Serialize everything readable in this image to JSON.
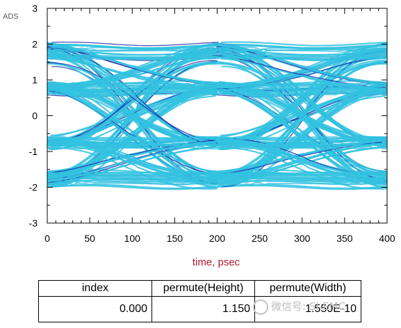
{
  "app_label": "ADS",
  "chart_data": {
    "type": "line",
    "title": "",
    "xlabel": "time, psec",
    "ylabel": "",
    "xlim": [
      0,
      400
    ],
    "ylim": [
      -3,
      3
    ],
    "x_ticks": [
      0,
      50,
      100,
      150,
      200,
      250,
      300,
      350,
      400
    ],
    "y_ticks": [
      3,
      2,
      1,
      0,
      -1,
      -2,
      -3
    ],
    "unit_interval_ps": 200,
    "crossing_points_ps": [
      100,
      300
    ],
    "levels": [
      -1.75,
      -0.75,
      0.75,
      1.75
    ],
    "colors": {
      "trace": "#33c2e0",
      "trace_dark": "#1a2aa8",
      "xlabel": "#b3192b"
    },
    "grid": false
  },
  "table": {
    "headers": [
      "index",
      "permute(Height)",
      "permute(Width)"
    ],
    "row": [
      "0.000",
      "1.150",
      "1.550E-10"
    ]
  },
  "watermark": "微信号: SI-EMC"
}
